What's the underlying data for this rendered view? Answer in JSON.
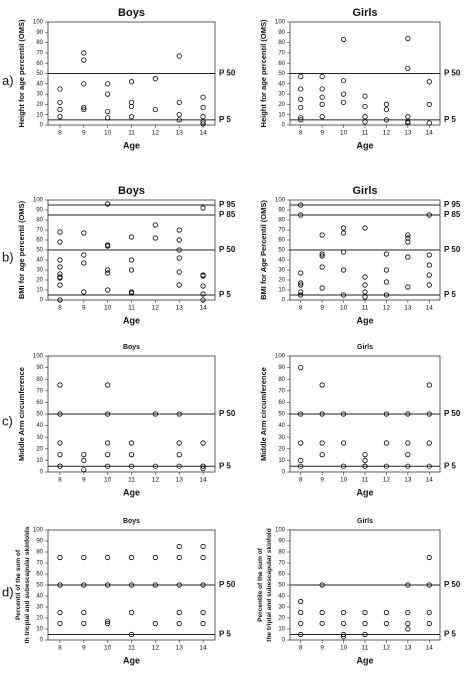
{
  "chart_data": [
    {
      "type": "scatter",
      "panel_label": "a)",
      "title": "Boys",
      "ylabel": "Height for age percentil (OMS)",
      "xlabel": "Age",
      "x": [
        8,
        8,
        8,
        8,
        9,
        9,
        9,
        9,
        9,
        10,
        10,
        10,
        10,
        11,
        11,
        11,
        11,
        12,
        12,
        13,
        13,
        13,
        13,
        14,
        14,
        14,
        14,
        14
      ],
      "values": [
        35,
        22,
        15,
        8,
        70,
        63,
        40,
        17,
        15,
        40,
        30,
        13,
        7,
        42,
        22,
        18,
        8,
        45,
        15,
        67,
        22,
        10,
        5,
        27,
        17,
        8,
        3,
        1
      ],
      "color": "#000000",
      "xlim": [
        7.5,
        14.5
      ],
      "xticks": [
        8,
        9,
        10,
        11,
        12,
        13,
        14
      ],
      "ylim": [
        0,
        100
      ],
      "yticks": [
        0,
        10,
        20,
        30,
        40,
        50,
        60,
        70,
        80,
        90,
        100
      ],
      "ref_lines": [
        {
          "value": 50,
          "label": "P 50"
        },
        {
          "value": 5,
          "label": "P 5"
        }
      ]
    },
    {
      "type": "scatter",
      "title": "Girls",
      "ylabel": "Height for age percentil (OMS)",
      "xlabel": "Age",
      "x": [
        8,
        8,
        8,
        8,
        8,
        8,
        9,
        9,
        9,
        9,
        9,
        10,
        10,
        10,
        10,
        11,
        11,
        11,
        11,
        12,
        12,
        12,
        13,
        13,
        13,
        13,
        13,
        14,
        14,
        14
      ],
      "values": [
        47,
        35,
        25,
        17,
        7,
        5,
        47,
        35,
        27,
        20,
        8,
        83,
        43,
        30,
        22,
        28,
        18,
        8,
        3,
        20,
        15,
        5,
        84,
        55,
        8,
        3,
        2,
        42,
        20,
        2
      ],
      "color": "#000000",
      "xlim": [
        7.5,
        14.5
      ],
      "xticks": [
        8,
        9,
        10,
        11,
        12,
        13,
        14
      ],
      "ylim": [
        0,
        100
      ],
      "yticks": [
        0,
        10,
        20,
        30,
        40,
        50,
        60,
        70,
        80,
        90,
        100
      ],
      "ref_lines": [
        {
          "value": 50,
          "label": "P 50"
        },
        {
          "value": 5,
          "label": "P 5"
        }
      ]
    },
    {
      "type": "scatter",
      "panel_label": "b)",
      "title": "Boys",
      "ylabel": "BMI for age percentil (OMS)",
      "xlabel": "Age",
      "x": [
        8,
        8,
        8,
        8,
        8,
        8,
        8,
        8,
        8,
        9,
        9,
        9,
        9,
        10,
        10,
        10,
        10,
        10,
        10,
        11,
        11,
        11,
        11,
        11,
        12,
        12,
        13,
        13,
        13,
        13,
        13,
        13,
        14,
        14,
        14,
        14,
        14,
        14
      ],
      "values": [
        68,
        58,
        40,
        33,
        26,
        23,
        22,
        15,
        0,
        67,
        45,
        37,
        8,
        96,
        55,
        54,
        30,
        27,
        10,
        63,
        40,
        30,
        8,
        7,
        75,
        62,
        70,
        60,
        50,
        42,
        28,
        15,
        92,
        25,
        24,
        14,
        6,
        0
      ],
      "color": "#000000",
      "xlim": [
        7.5,
        14.5
      ],
      "xticks": [
        8,
        9,
        10,
        11,
        12,
        13,
        14
      ],
      "ylim": [
        0,
        100
      ],
      "yticks": [
        0,
        10,
        20,
        30,
        40,
        50,
        60,
        70,
        80,
        90,
        100
      ],
      "ref_lines": [
        {
          "value": 95,
          "label": "P 95"
        },
        {
          "value": 85,
          "label": "P 85"
        },
        {
          "value": 50,
          "label": "P 50"
        },
        {
          "value": 5,
          "label": "P 5"
        }
      ]
    },
    {
      "type": "scatter",
      "title": "Girls",
      "ylabel": "BMI for Age Percentil (OMS)",
      "xlabel": "Age",
      "x": [
        8,
        8,
        8,
        8,
        8,
        8,
        8,
        9,
        9,
        9,
        9,
        9,
        10,
        10,
        10,
        10,
        10,
        11,
        11,
        11,
        11,
        11,
        12,
        12,
        12,
        12,
        13,
        13,
        13,
        13,
        13,
        14,
        14,
        14,
        14,
        14
      ],
      "values": [
        95,
        85,
        27,
        17,
        15,
        8,
        5,
        65,
        46,
        44,
        33,
        12,
        72,
        67,
        48,
        30,
        5,
        72,
        23,
        15,
        8,
        3,
        46,
        30,
        18,
        5,
        65,
        62,
        58,
        43,
        13,
        85,
        45,
        35,
        25,
        15
      ],
      "color": "#000000",
      "xlim": [
        7.5,
        14.5
      ],
      "xticks": [
        8,
        9,
        10,
        11,
        12,
        13,
        14
      ],
      "ylim": [
        0,
        100
      ],
      "yticks": [
        0,
        10,
        20,
        30,
        40,
        50,
        60,
        70,
        80,
        90,
        100
      ],
      "ref_lines": [
        {
          "value": 95,
          "label": "P 95"
        },
        {
          "value": 85,
          "label": "P 85"
        },
        {
          "value": 50,
          "label": "P 50"
        },
        {
          "value": 5,
          "label": "P 5"
        }
      ]
    },
    {
      "type": "scatter",
      "panel_label": "c)",
      "title": "Boys",
      "ylabel": "Middle Arm circumference",
      "xlabel": "Age",
      "x": [
        8,
        8,
        8,
        8,
        8,
        8,
        9,
        9,
        9,
        10,
        10,
        10,
        10,
        10,
        11,
        11,
        11,
        12,
        12,
        13,
        13,
        13,
        13,
        14,
        14,
        14,
        14
      ],
      "values": [
        75,
        50,
        25,
        15,
        5,
        5,
        15,
        10,
        2,
        75,
        50,
        25,
        15,
        5,
        25,
        15,
        5,
        50,
        5,
        50,
        25,
        15,
        5,
        25,
        5,
        5,
        3
      ],
      "color": "#000000",
      "xlim": [
        7.5,
        14.5
      ],
      "xticks": [
        8,
        9,
        10,
        11,
        12,
        13,
        14
      ],
      "ylim": [
        0,
        100
      ],
      "yticks": [
        0,
        10,
        20,
        30,
        40,
        50,
        60,
        70,
        80,
        90,
        100
      ],
      "ref_lines": [
        {
          "value": 50,
          "label": "P 50"
        },
        {
          "value": 5,
          "label": "P 5"
        }
      ]
    },
    {
      "type": "scatter",
      "title": "Girls",
      "ylabel": "Middle Arm circumference",
      "xlabel": "Age",
      "x": [
        8,
        8,
        8,
        8,
        8,
        9,
        9,
        9,
        9,
        10,
        10,
        10,
        11,
        11,
        11,
        11,
        12,
        12,
        12,
        13,
        13,
        13,
        13,
        14,
        14,
        14,
        14
      ],
      "values": [
        90,
        50,
        25,
        10,
        5,
        75,
        50,
        25,
        15,
        50,
        25,
        5,
        15,
        10,
        5,
        5,
        50,
        25,
        5,
        50,
        25,
        15,
        5,
        75,
        50,
        25,
        5
      ],
      "color": "#000000",
      "xlim": [
        7.5,
        14.5
      ],
      "xticks": [
        8,
        9,
        10,
        11,
        12,
        13,
        14
      ],
      "ylim": [
        0,
        100
      ],
      "yticks": [
        0,
        10,
        20,
        30,
        40,
        50,
        60,
        70,
        80,
        90,
        100
      ],
      "ref_lines": [
        {
          "value": 50,
          "label": "P 50"
        },
        {
          "value": 5,
          "label": "P 5"
        }
      ]
    },
    {
      "type": "scatter",
      "panel_label": "d)",
      "title": "Boys",
      "ylabel": "Percentil of the sum of th tricptal and subescapular skinfolds",
      "xlabel": "Age",
      "x": [
        8,
        8,
        8,
        8,
        9,
        9,
        9,
        9,
        10,
        10,
        10,
        10,
        11,
        11,
        11,
        11,
        12,
        12,
        12,
        13,
        13,
        13,
        13,
        13,
        14,
        14,
        14,
        14,
        14
      ],
      "values": [
        75,
        50,
        25,
        15,
        75,
        50,
        25,
        15,
        75,
        50,
        17,
        15,
        75,
        50,
        25,
        5,
        75,
        50,
        15,
        85,
        75,
        50,
        25,
        15,
        85,
        75,
        50,
        25,
        15
      ],
      "color": "#000000",
      "xlim": [
        7.5,
        14.5
      ],
      "xticks": [
        8,
        9,
        10,
        11,
        12,
        13,
        14
      ],
      "ylim": [
        0,
        100
      ],
      "yticks": [
        0,
        10,
        20,
        30,
        40,
        50,
        60,
        70,
        80,
        90,
        100
      ],
      "ref_lines": [
        {
          "value": 50,
          "label": "P 50"
        },
        {
          "value": 5,
          "label": "P 5"
        }
      ]
    },
    {
      "type": "scatter",
      "title": "Girls",
      "ylabel": "Percentile of the sum of the triptal and subescapular skinfold",
      "xlabel": "Age",
      "x": [
        8,
        8,
        8,
        8,
        9,
        9,
        9,
        10,
        10,
        10,
        10,
        11,
        11,
        11,
        12,
        12,
        13,
        13,
        13,
        13,
        14,
        14,
        14,
        14
      ],
      "values": [
        35,
        25,
        15,
        5,
        50,
        25,
        15,
        25,
        15,
        5,
        3,
        25,
        15,
        5,
        25,
        15,
        50,
        25,
        15,
        10,
        75,
        50,
        25,
        15
      ],
      "color": "#000000",
      "xlim": [
        7.5,
        14.5
      ],
      "xticks": [
        8,
        9,
        10,
        11,
        12,
        13,
        14
      ],
      "ylim": [
        0,
        100
      ],
      "yticks": [
        0,
        10,
        20,
        30,
        40,
        50,
        60,
        70,
        80,
        90,
        100
      ],
      "ref_lines": [
        {
          "value": 50,
          "label": "P 50"
        },
        {
          "value": 5,
          "label": "P 5"
        }
      ]
    }
  ]
}
